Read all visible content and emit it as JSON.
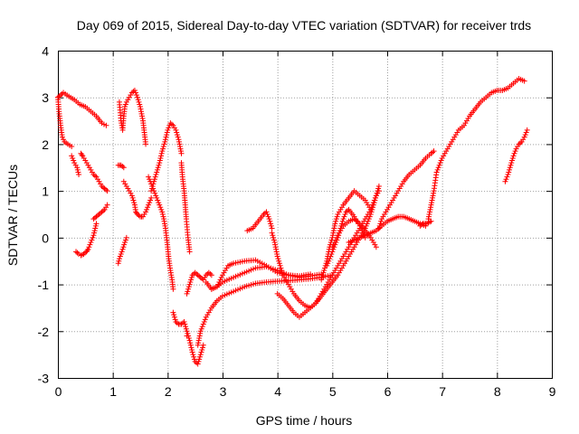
{
  "chart_data": {
    "type": "scatter",
    "title": "Day 069 of 2015, Sidereal Day-to-day VTEC variation (SDTVAR) for receiver trds",
    "xlabel": "GPS time / hours",
    "ylabel": "SDTVAR / TECUs",
    "xlim": [
      0,
      9
    ],
    "ylim": [
      -3,
      4
    ],
    "xticks": [
      "0",
      "1",
      "2",
      "3",
      "4",
      "5",
      "6",
      "7",
      "8",
      "9"
    ],
    "yticks": [
      "-3",
      "-2",
      "-1",
      "0",
      "1",
      "2",
      "3",
      "4"
    ],
    "grid": true,
    "marker": "+",
    "color": "#ff0000",
    "tracks": [
      {
        "x": [
          0.0,
          0.05,
          0.1,
          0.2,
          0.3,
          0.4,
          0.5,
          0.6,
          0.7,
          0.8,
          0.88
        ],
        "y": [
          3.0,
          3.05,
          3.1,
          3.02,
          2.95,
          2.85,
          2.8,
          2.7,
          2.6,
          2.45,
          2.4
        ]
      },
      {
        "x": [
          0.0,
          0.02,
          0.05,
          0.08,
          0.12,
          0.18,
          0.25
        ],
        "y": [
          3.0,
          2.7,
          2.4,
          2.15,
          2.05,
          2.0,
          1.95
        ]
      },
      {
        "x": [
          0.25,
          0.3,
          0.35,
          0.38
        ],
        "y": [
          1.75,
          1.6,
          1.5,
          1.35
        ]
      },
      {
        "x": [
          0.42,
          0.45,
          0.5,
          0.55,
          0.6,
          0.65,
          0.7,
          0.75,
          0.8,
          0.85,
          0.9
        ],
        "y": [
          1.8,
          1.75,
          1.65,
          1.55,
          1.45,
          1.35,
          1.3,
          1.2,
          1.1,
          1.05,
          1.0
        ]
      },
      {
        "x": [
          0.33,
          0.38,
          0.42,
          0.47,
          0.52,
          0.55,
          0.6,
          0.65,
          0.7
        ],
        "y": [
          -0.3,
          -0.35,
          -0.38,
          -0.35,
          -0.3,
          -0.25,
          -0.1,
          0.05,
          0.3
        ]
      },
      {
        "x": [
          0.65,
          0.7,
          0.75,
          0.8,
          0.85,
          0.9
        ],
        "y": [
          0.4,
          0.45,
          0.5,
          0.55,
          0.6,
          0.7
        ]
      },
      {
        "x": [
          1.12,
          1.15,
          1.18,
          1.2,
          1.22,
          1.25,
          1.3,
          1.35,
          1.4,
          1.45,
          1.5,
          1.55,
          1.58,
          1.6
        ],
        "y": [
          2.9,
          2.5,
          2.3,
          2.6,
          2.8,
          2.9,
          3.0,
          3.1,
          3.15,
          3.0,
          2.8,
          2.5,
          2.2,
          2.0
        ]
      },
      {
        "x": [
          1.2,
          1.25,
          1.3,
          1.35,
          1.4,
          1.42,
          1.45,
          1.5,
          1.55,
          1.6,
          1.65,
          1.7
        ],
        "y": [
          1.2,
          1.1,
          1.0,
          0.9,
          0.7,
          0.55,
          0.5,
          0.45,
          0.45,
          0.55,
          0.7,
          0.85
        ]
      },
      {
        "x": [
          1.7,
          1.75,
          1.8,
          1.85,
          1.9,
          1.95,
          2.0,
          2.05,
          2.1,
          2.15,
          2.2,
          2.25
        ],
        "y": [
          1.0,
          1.2,
          1.4,
          1.6,
          1.85,
          2.05,
          2.3,
          2.45,
          2.4,
          2.3,
          2.1,
          1.8
        ]
      },
      {
        "x": [
          1.1,
          1.12,
          1.15,
          1.18,
          1.22,
          1.25
        ],
        "y": [
          -0.55,
          -0.45,
          -0.35,
          -0.25,
          -0.1,
          0.0
        ]
      },
      {
        "x": [
          1.65,
          1.7,
          1.75,
          1.8,
          1.85,
          1.9,
          1.93,
          1.96,
          1.98,
          2.0,
          2.02,
          2.05,
          2.08,
          2.1
        ],
        "y": [
          1.3,
          1.15,
          1.0,
          0.85,
          0.7,
          0.55,
          0.4,
          0.2,
          0.0,
          -0.2,
          -0.45,
          -0.7,
          -0.9,
          -1.1
        ]
      },
      {
        "x": [
          2.25,
          2.27,
          2.3,
          2.32,
          2.34,
          2.37,
          2.4
        ],
        "y": [
          1.6,
          1.3,
          1.0,
          0.7,
          0.4,
          0.0,
          -0.3
        ]
      },
      {
        "x": [
          2.1,
          2.15,
          2.2,
          2.25,
          2.3,
          2.35,
          2.4,
          2.45,
          2.5,
          2.55,
          2.6,
          2.65
        ],
        "y": [
          -1.6,
          -1.8,
          -1.85,
          -1.85,
          -1.8,
          -2.0,
          -2.2,
          -2.45,
          -2.65,
          -2.7,
          -2.5,
          -2.3
        ]
      },
      {
        "x": [
          2.35,
          2.4,
          2.45,
          2.5,
          2.55,
          2.6,
          2.65,
          2.7,
          2.75,
          2.8
        ],
        "y": [
          -1.2,
          -1.0,
          -0.8,
          -0.75,
          -0.8,
          -0.85,
          -0.9,
          -0.8,
          -0.75,
          -0.8
        ]
      },
      {
        "x": [
          2.55,
          2.6,
          2.7,
          2.8,
          2.9,
          3.0,
          3.2,
          3.4,
          3.6,
          3.8,
          4.0,
          4.2,
          4.4,
          4.6,
          4.8,
          5.0
        ],
        "y": [
          -2.3,
          -2.0,
          -1.7,
          -1.5,
          -1.35,
          -1.25,
          -1.15,
          -1.05,
          -0.98,
          -0.95,
          -0.93,
          -0.92,
          -0.9,
          -0.88,
          -0.85,
          -0.8
        ]
      },
      {
        "x": [
          2.8,
          2.9,
          3.0,
          3.2,
          3.4,
          3.6,
          3.8,
          4.0,
          4.2,
          4.4,
          4.6,
          4.8
        ],
        "y": [
          -1.1,
          -1.05,
          -0.95,
          -0.85,
          -0.75,
          -0.65,
          -0.62,
          -0.7,
          -0.8,
          -0.85,
          -0.82,
          -0.78
        ]
      },
      {
        "x": [
          2.7,
          2.8,
          2.9,
          3.0,
          3.1,
          3.2,
          3.4,
          3.6,
          3.8,
          4.0,
          4.2,
          4.4,
          4.6
        ],
        "y": [
          -0.95,
          -1.1,
          -1.05,
          -0.8,
          -0.6,
          -0.55,
          -0.5,
          -0.48,
          -0.6,
          -0.75,
          -0.8,
          -0.82,
          -0.78
        ]
      },
      {
        "x": [
          3.45,
          3.55,
          3.65,
          3.75,
          3.8,
          3.85,
          3.9
        ],
        "y": [
          0.15,
          0.2,
          0.35,
          0.5,
          0.55,
          0.4,
          0.2
        ]
      },
      {
        "x": [
          3.9,
          3.95,
          4.0,
          4.05,
          4.1,
          4.2,
          4.3,
          4.4,
          4.5,
          4.6,
          4.7,
          4.8,
          4.9,
          5.0,
          5.1,
          5.2,
          5.3,
          5.4,
          5.5,
          5.6,
          5.7,
          5.8,
          5.85
        ],
        "y": [
          0.1,
          -0.1,
          -0.4,
          -0.6,
          -0.8,
          -1.0,
          -1.2,
          -1.35,
          -1.45,
          -1.5,
          -1.4,
          -1.25,
          -1.1,
          -0.95,
          -0.8,
          -0.6,
          -0.4,
          -0.2,
          0.0,
          0.2,
          0.5,
          0.9,
          1.1
        ]
      },
      {
        "x": [
          4.0,
          4.1,
          4.2,
          4.3,
          4.4,
          4.5,
          4.6,
          4.7,
          4.8,
          4.9,
          5.0,
          5.1,
          5.2,
          5.3,
          5.4,
          5.5,
          5.6,
          5.7,
          5.8,
          5.85
        ],
        "y": [
          -1.2,
          -1.3,
          -1.45,
          -1.6,
          -1.7,
          -1.6,
          -1.5,
          -1.4,
          -1.2,
          -1.0,
          -0.8,
          -0.6,
          -0.4,
          -0.2,
          0.0,
          0.2,
          0.4,
          0.6,
          0.9,
          1.0
        ]
      },
      {
        "x": [
          4.8,
          4.85,
          4.9,
          4.95,
          5.0,
          5.05,
          5.1,
          5.2,
          5.3,
          5.4,
          5.5,
          5.6,
          5.7
        ],
        "y": [
          -0.9,
          -0.7,
          -0.5,
          -0.2,
          0.0,
          0.3,
          0.5,
          0.7,
          0.85,
          1.0,
          0.9,
          0.8,
          0.6
        ]
      },
      {
        "x": [
          4.9,
          5.0,
          5.1,
          5.15,
          5.2,
          5.25,
          5.3,
          5.4,
          5.5,
          5.6
        ],
        "y": [
          -0.6,
          -0.3,
          0.0,
          0.2,
          0.4,
          0.55,
          0.6,
          0.45,
          0.25,
          0.0
        ]
      },
      {
        "x": [
          5.0,
          5.1,
          5.2,
          5.3,
          5.4,
          5.5,
          5.6,
          5.7,
          5.8
        ],
        "y": [
          -0.2,
          0.05,
          0.25,
          0.35,
          0.4,
          0.3,
          0.15,
          0.0,
          -0.2
        ]
      },
      {
        "x": [
          5.3,
          5.4,
          5.5,
          5.6,
          5.7,
          5.8,
          5.9,
          6.0,
          6.1,
          6.2,
          6.3,
          6.4,
          6.5,
          6.6,
          6.7
        ],
        "y": [
          -0.1,
          -0.05,
          0.0,
          0.05,
          0.1,
          0.15,
          0.25,
          0.35,
          0.4,
          0.45,
          0.45,
          0.4,
          0.35,
          0.3,
          0.25
        ]
      },
      {
        "x": [
          5.85,
          5.9,
          6.0,
          6.1,
          6.2,
          6.3,
          6.4,
          6.5,
          6.6,
          6.7,
          6.8,
          6.85
        ],
        "y": [
          0.2,
          0.4,
          0.6,
          0.8,
          1.0,
          1.2,
          1.35,
          1.45,
          1.55,
          1.7,
          1.8,
          1.85
        ]
      },
      {
        "x": [
          6.6,
          6.65,
          6.7,
          6.75,
          6.8
        ],
        "y": [
          0.25,
          0.3,
          0.3,
          0.32,
          0.35
        ]
      },
      {
        "x": [
          6.75,
          6.8,
          6.85,
          6.9,
          7.0,
          7.1,
          7.2,
          7.3,
          7.4,
          7.5,
          7.6,
          7.7,
          7.8,
          7.9,
          8.0,
          8.1,
          8.2,
          8.3,
          8.4,
          8.5
        ],
        "y": [
          0.4,
          0.7,
          1.0,
          1.4,
          1.7,
          1.9,
          2.1,
          2.3,
          2.4,
          2.6,
          2.75,
          2.9,
          3.0,
          3.1,
          3.15,
          3.15,
          3.2,
          3.3,
          3.4,
          3.35
        ]
      },
      {
        "x": [
          8.15,
          8.2,
          8.25,
          8.3,
          8.35,
          8.4,
          8.45,
          8.5,
          8.55
        ],
        "y": [
          1.2,
          1.35,
          1.55,
          1.75,
          1.9,
          2.0,
          2.05,
          2.15,
          2.3
        ]
      },
      {
        "x": [
          1.1,
          1.15,
          1.2
        ],
        "y": [
          1.55,
          1.55,
          1.5
        ]
      },
      {
        "x": [
          2.35
        ],
        "y": [
          -2.1
        ]
      }
    ]
  }
}
